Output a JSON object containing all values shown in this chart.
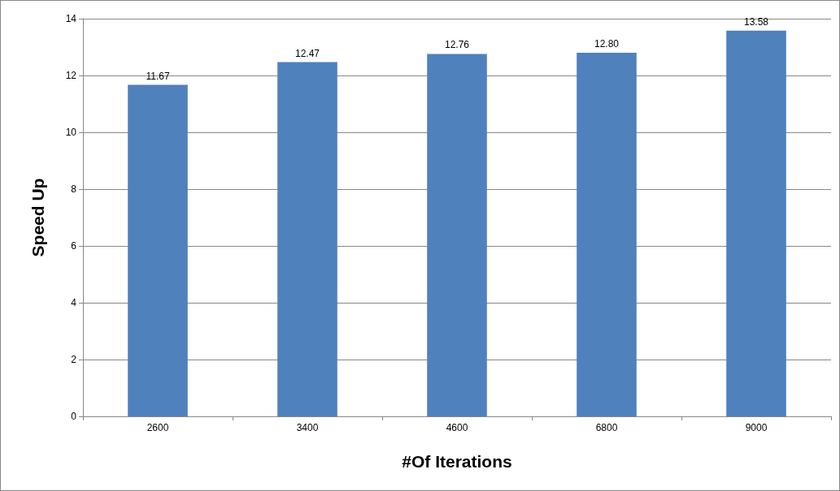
{
  "chart_data": {
    "type": "bar",
    "xlabel": "#Of Iterations",
    "ylabel": "Speed Up",
    "categories": [
      "2600",
      "3400",
      "4600",
      "6800",
      "9000"
    ],
    "values": [
      11.67,
      12.47,
      12.76,
      12.8,
      13.58
    ],
    "value_labels": [
      "11.67",
      "12.47",
      "12.76",
      "12.80",
      "13.58"
    ],
    "color": "#4f81bd",
    "ylim": [
      0,
      14
    ],
    "yticks": [
      0,
      2,
      4,
      6,
      8,
      10,
      12,
      14
    ],
    "grid": "y"
  }
}
